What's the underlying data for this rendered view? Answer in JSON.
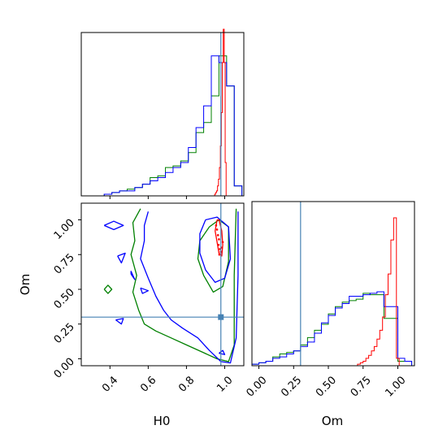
{
  "chart_data": {
    "type": "corner",
    "parameters": [
      "H0",
      "Om"
    ],
    "truth": {
      "H0": 0.98,
      "Om": 0.3
    },
    "truth_color": "#4682b4",
    "series": [
      {
        "color": "#ff0000"
      },
      {
        "color": "#008000"
      },
      {
        "color": "#0000ff"
      }
    ],
    "panels": {
      "H0_hist": {
        "xlim": [
          0.25,
          1.1
        ],
        "bin_edges": [
          0.25,
          0.29,
          0.33,
          0.37,
          0.41,
          0.45,
          0.49,
          0.53,
          0.57,
          0.61,
          0.65,
          0.69,
          0.73,
          0.77,
          0.81,
          0.85,
          0.89,
          0.93,
          0.97,
          1.01,
          1.05,
          1.09
        ],
        "green": [
          0,
          0,
          0,
          0.01,
          0.02,
          0.03,
          0.04,
          0.05,
          0.07,
          0.11,
          0.12,
          0.17,
          0.18,
          0.21,
          0.26,
          0.38,
          0.44,
          0.6,
          0.84,
          0.66,
          0.06
        ],
        "blue": [
          0,
          0,
          0,
          0.01,
          0.02,
          0.03,
          0.03,
          0.05,
          0.07,
          0.09,
          0.11,
          0.14,
          0.17,
          0.2,
          0.29,
          0.41,
          0.54,
          0.84,
          0.8,
          0.66,
          0.06
        ],
        "red_x": [
          0.95,
          0.955,
          0.96,
          0.965,
          0.97,
          0.975,
          0.98,
          0.985,
          0.99,
          0.995,
          1.0,
          1.005
        ],
        "red": [
          0.01,
          0.02,
          0.03,
          0.06,
          0.1,
          0.17,
          0.3,
          0.5,
          0.8,
          1.0,
          0.8,
          0.2
        ]
      },
      "Om_vs_H0": {
        "xlabel": "H0",
        "ylabel": "Om",
        "xlim": [
          0.25,
          1.1
        ],
        "ylim": [
          -0.05,
          1.12
        ],
        "xticks": [
          "0.4",
          "0.6",
          "0.8",
          "1.0"
        ],
        "xtick_values": [
          0.4,
          0.6,
          0.8,
          1.0
        ],
        "yticks": [
          "0.00",
          "0.25",
          "0.50",
          "0.75",
          "1.00"
        ],
        "ytick_values": [
          0,
          0.25,
          0.5,
          0.75,
          1.0
        ],
        "contours": [
          {
            "color": "#008000",
            "points": [
              [
                0.56,
                1.08
              ],
              [
                0.52,
                0.98
              ],
              [
                0.53,
                0.85
              ],
              [
                0.51,
                0.75
              ],
              [
                0.54,
                0.6
              ],
              [
                0.52,
                0.48
              ],
              [
                0.55,
                0.35
              ],
              [
                0.58,
                0.25
              ],
              [
                0.64,
                0.2
              ],
              [
                0.72,
                0.15
              ],
              [
                0.8,
                0.1
              ],
              [
                0.88,
                0.05
              ],
              [
                0.96,
                0.0
              ],
              [
                1.02,
                -0.02
              ],
              [
                1.05,
                0.1
              ],
              [
                1.05,
                0.6
              ],
              [
                1.06,
                1.08
              ]
            ]
          },
          {
            "color": "#008000",
            "points": [
              [
                0.92,
                0.95
              ],
              [
                0.87,
                0.85
              ],
              [
                0.86,
                0.72
              ],
              [
                0.89,
                0.6
              ],
              [
                0.94,
                0.48
              ],
              [
                0.99,
                0.52
              ],
              [
                1.02,
                0.7
              ],
              [
                1.02,
                0.95
              ],
              [
                0.97,
                1.0
              ],
              [
                0.92,
                0.95
              ]
            ]
          },
          {
            "color": "#0000ff",
            "points": [
              [
                0.6,
                1.06
              ],
              [
                0.58,
                0.96
              ],
              [
                0.58,
                0.85
              ],
              [
                0.56,
                0.72
              ],
              [
                0.6,
                0.58
              ],
              [
                0.64,
                0.45
              ],
              [
                0.68,
                0.35
              ],
              [
                0.72,
                0.28
              ],
              [
                0.78,
                0.22
              ],
              [
                0.86,
                0.15
              ],
              [
                0.92,
                0.06
              ],
              [
                0.98,
                -0.02
              ],
              [
                1.03,
                -0.03
              ],
              [
                1.06,
                0.15
              ],
              [
                1.07,
                0.6
              ],
              [
                1.07,
                1.06
              ]
            ]
          },
          {
            "color": "#0000ff",
            "points": [
              [
                0.9,
                1.0
              ],
              [
                0.87,
                0.9
              ],
              [
                0.87,
                0.76
              ],
              [
                0.9,
                0.64
              ],
              [
                0.95,
                0.55
              ],
              [
                1.0,
                0.58
              ],
              [
                1.03,
                0.72
              ],
              [
                1.02,
                0.95
              ],
              [
                0.96,
                1.02
              ],
              [
                0.9,
                1.0
              ]
            ]
          },
          {
            "color": "#0000ff",
            "points": [
              [
                0.37,
                0.96
              ],
              [
                0.42,
                0.93
              ],
              [
                0.47,
                0.96
              ],
              [
                0.42,
                0.99
              ],
              [
                0.37,
                0.96
              ]
            ]
          },
          {
            "color": "#0000ff",
            "points": [
              [
                0.44,
                0.74
              ],
              [
                0.48,
                0.76
              ],
              [
                0.46,
                0.69
              ],
              [
                0.44,
                0.74
              ]
            ]
          },
          {
            "color": "#0000ff",
            "points": [
              [
                0.51,
                0.61
              ],
              [
                0.53,
                0.57
              ],
              [
                0.51,
                0.63
              ],
              [
                0.51,
                0.61
              ]
            ]
          },
          {
            "color": "#0000ff",
            "points": [
              [
                0.56,
                0.51
              ],
              [
                0.6,
                0.49
              ],
              [
                0.57,
                0.47
              ],
              [
                0.56,
                0.51
              ]
            ]
          },
          {
            "color": "#0000ff",
            "points": [
              [
                0.43,
                0.28
              ],
              [
                0.46,
                0.25
              ],
              [
                0.47,
                0.29
              ],
              [
                0.43,
                0.28
              ]
            ]
          },
          {
            "color": "#0000ff",
            "points": [
              [
                0.97,
                0.04
              ],
              [
                0.99,
                0.06
              ],
              [
                1.0,
                0.03
              ],
              [
                0.97,
                0.04
              ]
            ]
          },
          {
            "color": "#008000",
            "points": [
              [
                0.37,
                0.5
              ],
              [
                0.39,
                0.47
              ],
              [
                0.41,
                0.5
              ],
              [
                0.39,
                0.53
              ],
              [
                0.37,
                0.5
              ]
            ]
          },
          {
            "color": "#ff0000",
            "points": [
              [
                0.96,
                1.0
              ],
              [
                0.95,
                0.92
              ],
              [
                0.96,
                0.84
              ],
              [
                0.97,
                0.76
              ],
              [
                0.985,
                0.74
              ],
              [
                0.99,
                0.82
              ],
              [
                0.985,
                0.92
              ],
              [
                0.97,
                1.0
              ],
              [
                0.96,
                1.0
              ]
            ]
          }
        ],
        "red_points": [
          [
            0.955,
            0.96
          ],
          [
            0.96,
            0.93
          ],
          [
            0.965,
            0.89
          ],
          [
            0.97,
            0.86
          ],
          [
            0.968,
            0.82
          ],
          [
            0.975,
            0.79
          ],
          [
            0.98,
            0.77
          ],
          [
            0.972,
            0.75
          ],
          [
            0.985,
            0.8
          ],
          [
            0.99,
            0.84
          ]
        ]
      },
      "Om_hist": {
        "xlabel": "Om",
        "xlim": [
          -0.05,
          1.12
        ],
        "xticks": [
          "0.00",
          "0.25",
          "0.50",
          "0.75",
          "1.00"
        ],
        "xtick_values": [
          0,
          0.25,
          0.5,
          0.75,
          1.0
        ],
        "bin_edges": [
          -0.05,
          0.0,
          0.05,
          0.1,
          0.15,
          0.2,
          0.25,
          0.3,
          0.35,
          0.4,
          0.45,
          0.5,
          0.55,
          0.6,
          0.65,
          0.7,
          0.75,
          0.8,
          0.85,
          0.9,
          0.95,
          1.0,
          1.05,
          1.1
        ],
        "green": [
          0.01,
          0.02,
          0.03,
          0.06,
          0.08,
          0.09,
          0.1,
          0.14,
          0.19,
          0.24,
          0.28,
          0.35,
          0.4,
          0.43,
          0.44,
          0.45,
          0.49,
          0.48,
          0.48,
          0.32,
          0.32,
          0.03,
          0.03
        ],
        "blue": [
          0.01,
          0.02,
          0.03,
          0.05,
          0.06,
          0.08,
          0.1,
          0.13,
          0.16,
          0.22,
          0.29,
          0.34,
          0.39,
          0.42,
          0.47,
          0.47,
          0.48,
          0.49,
          0.5,
          0.4,
          0.4,
          0.05,
          0.03
        ],
        "red_x": [
          0.72,
          0.74,
          0.76,
          0.78,
          0.8,
          0.82,
          0.84,
          0.86,
          0.88,
          0.9,
          0.92,
          0.94,
          0.96,
          0.98,
          1.0
        ],
        "red": [
          0.01,
          0.02,
          0.03,
          0.05,
          0.07,
          0.1,
          0.13,
          0.18,
          0.24,
          0.33,
          0.48,
          0.62,
          0.85,
          1.0,
          0.05
        ]
      }
    }
  }
}
